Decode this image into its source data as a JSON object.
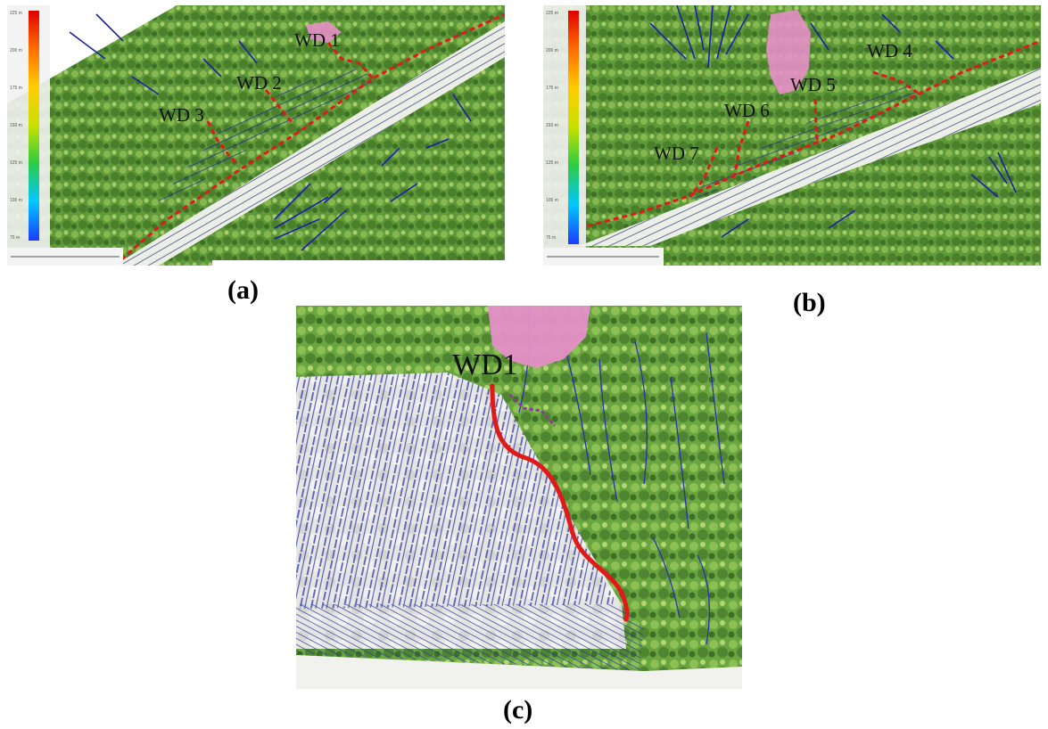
{
  "figure": {
    "panels": [
      {
        "id": "a",
        "caption": "(a)",
        "labels": [
          "WD 1",
          "WD 2",
          "WD 3"
        ],
        "legend_color_stops": [
          "#1a3cff",
          "#00c8ff",
          "#2ecc40",
          "#c8e000",
          "#ffcc00",
          "#ff6a00",
          "#e00000"
        ],
        "legend_ticks": [
          "225 m",
          "200 m",
          "175 m",
          "150 m",
          "125 m",
          "100 m",
          "75 m"
        ]
      },
      {
        "id": "b",
        "caption": "(b)",
        "labels": [
          "WD 4",
          "WD 5",
          "WD 6",
          "WD 7"
        ],
        "legend_color_stops": [
          "#1a3cff",
          "#00c8ff",
          "#2ecc40",
          "#c8e000",
          "#ffcc00",
          "#ff6a00",
          "#e00000"
        ],
        "legend_ticks": [
          "225 m",
          "200 m",
          "175 m",
          "150 m",
          "125 m",
          "100 m",
          "75 m"
        ]
      },
      {
        "id": "c",
        "caption": "(c)",
        "labels": [
          "WD1"
        ]
      }
    ],
    "colors": {
      "vegetation": "#5f9a3a",
      "flow_lines": "#1b1fa8",
      "waterway_dashed": "#e01a1a",
      "landslide_area": "#e58fc8",
      "bare_slope": "#e9eae4"
    }
  }
}
